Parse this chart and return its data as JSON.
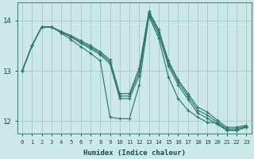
{
  "xlabel": "Humidex (Indice chaleur)",
  "bg_color": "#cce8e8",
  "grid_color": "#aacccc",
  "line_color": "#2d7a6a",
  "xlim": [
    -0.5,
    23.5
  ],
  "ylim": [
    11.75,
    14.35
  ],
  "yticks": [
    12,
    13,
    14
  ],
  "xticks": [
    0,
    1,
    2,
    3,
    4,
    5,
    6,
    7,
    8,
    9,
    10,
    11,
    12,
    13,
    14,
    15,
    16,
    17,
    18,
    19,
    20,
    21,
    22,
    23
  ],
  "series": [
    [
      13.0,
      13.5,
      13.87,
      13.87,
      13.78,
      13.7,
      13.6,
      13.5,
      13.38,
      13.22,
      12.55,
      12.55,
      13.05,
      14.18,
      13.82,
      13.2,
      12.82,
      12.55,
      12.28,
      12.18,
      12.02,
      11.88,
      11.88,
      11.92
    ],
    [
      13.0,
      13.5,
      13.87,
      13.87,
      13.78,
      13.68,
      13.57,
      13.47,
      13.35,
      13.18,
      12.5,
      12.5,
      12.98,
      14.15,
      13.78,
      13.15,
      12.78,
      12.5,
      12.22,
      12.12,
      11.98,
      11.85,
      11.85,
      11.9
    ],
    [
      13.0,
      13.5,
      13.87,
      13.87,
      13.77,
      13.67,
      13.55,
      13.44,
      13.32,
      13.14,
      12.45,
      12.45,
      12.9,
      14.12,
      13.72,
      13.1,
      12.72,
      12.44,
      12.16,
      12.06,
      11.94,
      11.82,
      11.82,
      11.88
    ],
    [
      13.0,
      13.5,
      13.87,
      13.87,
      13.75,
      13.62,
      13.48,
      13.35,
      13.2,
      12.08,
      12.05,
      12.05,
      12.72,
      14.08,
      13.65,
      12.88,
      12.45,
      12.22,
      12.08,
      11.98,
      11.96,
      11.82,
      11.82,
      11.88
    ]
  ]
}
